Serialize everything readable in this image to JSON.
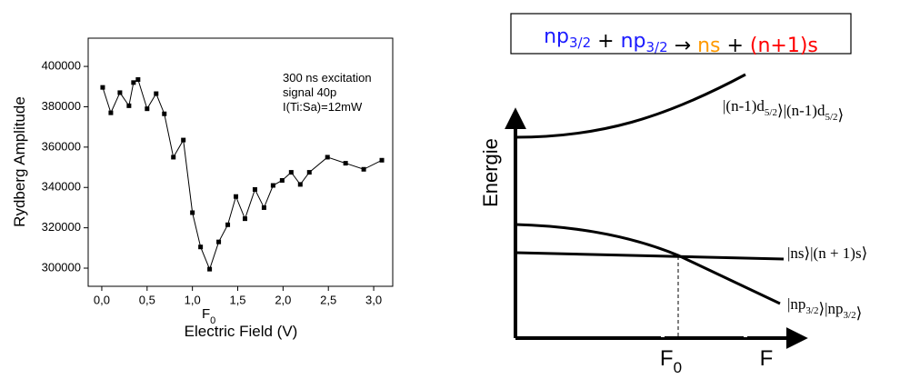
{
  "chart_data": {
    "type": "line",
    "ylabel": "Rydberg Amplitude",
    "xlabel": "Electric Field (V)",
    "annotations": [
      "300 ns excitation",
      "signal 40p",
      "I(Ti:Sa)=12mW"
    ],
    "marker_annotation": {
      "text": "F",
      "sub": "0"
    },
    "x": [
      0.01,
      0.1,
      0.2,
      0.3,
      0.35,
      0.4,
      0.5,
      0.6,
      0.69,
      0.79,
      0.9,
      1.0,
      1.09,
      1.19,
      1.29,
      1.39,
      1.48,
      1.58,
      1.69,
      1.79,
      1.89,
      1.99,
      2.09,
      2.19,
      2.29,
      2.49,
      2.69,
      2.89,
      3.09
    ],
    "values": [
      389600,
      377000,
      387000,
      380500,
      392000,
      393500,
      379000,
      386500,
      376500,
      355000,
      363500,
      327500,
      310500,
      299500,
      313000,
      321500,
      335500,
      324500,
      339000,
      330000,
      341000,
      343500,
      347500,
      341500,
      347500,
      355000,
      352000,
      349000,
      353500
    ],
    "color": "#000000",
    "xlim": [
      -0.15,
      3.21
    ],
    "ylim": [
      291000,
      414000
    ],
    "xticks": [
      {
        "value": 0,
        "label": "0,0"
      },
      {
        "value": 0.5,
        "label": "0,5"
      },
      {
        "value": 1.0,
        "label": "1,0"
      },
      {
        "value": 1.5,
        "label": "1,5"
      },
      {
        "value": 2.0,
        "label": "2,0"
      },
      {
        "value": 2.5,
        "label": "2,5"
      },
      {
        "value": 3.0,
        "label": "3,0"
      }
    ],
    "yticks": [
      300000,
      320000,
      340000,
      360000,
      380000,
      400000
    ]
  },
  "diagram": {
    "formula": [
      {
        "text": "np",
        "sub": "3/2",
        "color": "#1a1aff"
      },
      {
        "text": " + ",
        "color": "#000000"
      },
      {
        "text": "np",
        "sub": "3/2",
        "color": "#1a1aff"
      },
      {
        "text": " → ",
        "color": "#000000"
      },
      {
        "text": "ns",
        "color": "#ff9900"
      },
      {
        "text": " + ",
        "color": "#000000"
      },
      {
        "text": "(n+1)s",
        "color": "#ff0000"
      }
    ],
    "y_axis_label": "Energie",
    "x_marker": {
      "text": "F",
      "sub": "0"
    },
    "x_axis_label": "F",
    "states": [
      [
        {
          "text": "|(n-1)d",
          "sub": "5/2"
        },
        {
          "text": "⟩|(n-1)d",
          "sub": "5/2"
        },
        {
          "text": "⟩"
        }
      ],
      [
        {
          "text": "|ns⟩|(n + 1)s⟩"
        }
      ],
      [
        {
          "text": "|np",
          "sub": "3/2"
        },
        {
          "text": "⟩|np",
          "sub": "3/2"
        },
        {
          "text": "⟩"
        }
      ]
    ]
  }
}
